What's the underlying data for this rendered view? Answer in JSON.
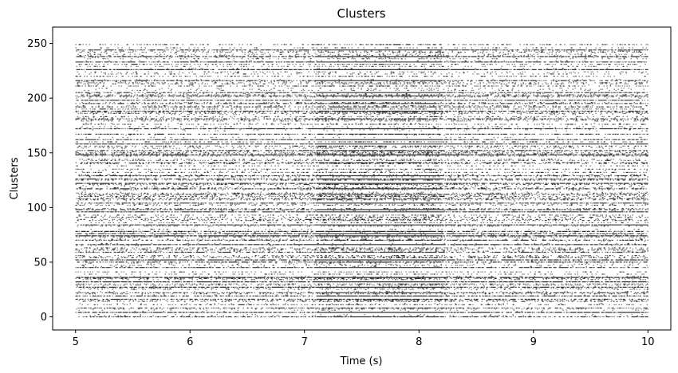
{
  "chart_data": {
    "type": "raster",
    "title": "Clusters",
    "xlabel": "Time (s)",
    "ylabel": "Clusters",
    "xlim": [
      4.8,
      10.2
    ],
    "ylim": [
      -12,
      265
    ],
    "xticks": [
      5,
      6,
      7,
      8,
      9,
      10
    ],
    "xtick_labels": [
      "5",
      "6",
      "7",
      "8",
      "9",
      "10"
    ],
    "yticks": [
      0,
      50,
      100,
      150,
      200,
      250
    ],
    "ytick_labels": [
      "0",
      "50",
      "100",
      "150",
      "200",
      "250"
    ],
    "time_range": [
      5,
      10
    ],
    "n_clusters": 250,
    "spike_color": "#000000",
    "grid": false,
    "legend": "none"
  }
}
